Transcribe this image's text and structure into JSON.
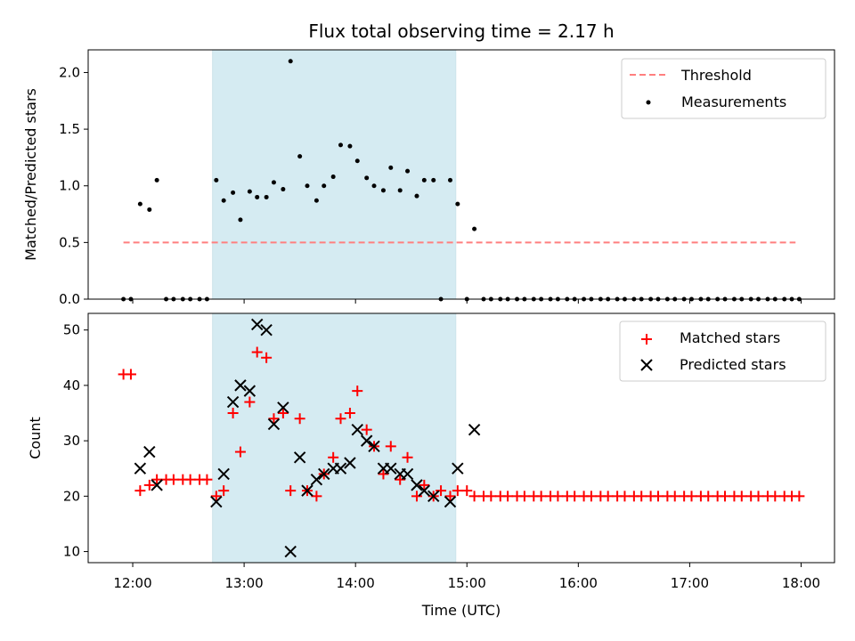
{
  "chart_data": {
    "title": "Flux total observing time = 2.17 h",
    "shaded_interval": {
      "start": "12:43",
      "end": "14:54",
      "color": "#add8e6"
    },
    "x_axis": {
      "label": "Time (UTC)",
      "range": [
        "11:36",
        "18:18"
      ],
      "ticks": [
        "12:00",
        "13:00",
        "14:00",
        "15:00",
        "16:00",
        "17:00",
        "18:00"
      ]
    },
    "panels": [
      {
        "type": "scatter",
        "ylabel": "Matched/Predicted stars",
        "ylim": [
          0,
          2.2
        ],
        "yticks": [
          "0.0",
          "0.5",
          "1.0",
          "1.5",
          "2.0"
        ],
        "legend": {
          "placement": "top-right",
          "entries": [
            "Threshold",
            "Measurements"
          ]
        },
        "series": [
          {
            "name": "Threshold",
            "style": "dashed-line",
            "color": "#ff7f7f",
            "points": [
              [
                "11:55",
                0.5
              ],
              [
                "17:57",
                0.5
              ]
            ]
          },
          {
            "name": "Measurements",
            "style": "dot",
            "color": "#000000",
            "points": [
              [
                "11:55",
                0.0
              ],
              [
                "11:59",
                0.0
              ],
              [
                "12:04",
                0.84
              ],
              [
                "12:09",
                0.79
              ],
              [
                "12:13",
                1.05
              ],
              [
                "12:18",
                0.0
              ],
              [
                "12:22",
                0.0
              ],
              [
                "12:27",
                0.0
              ],
              [
                "12:31",
                0.0
              ],
              [
                "12:36",
                0.0
              ],
              [
                "12:40",
                0.0
              ],
              [
                "12:45",
                1.05
              ],
              [
                "12:49",
                0.87
              ],
              [
                "12:54",
                0.94
              ],
              [
                "12:58",
                0.7
              ],
              [
                "13:03",
                0.95
              ],
              [
                "13:07",
                0.9
              ],
              [
                "13:12",
                0.9
              ],
              [
                "13:16",
                1.03
              ],
              [
                "13:21",
                0.97
              ],
              [
                "13:25",
                2.1
              ],
              [
                "13:30",
                1.26
              ],
              [
                "13:34",
                1.0
              ],
              [
                "13:39",
                0.87
              ],
              [
                "13:43",
                1.0
              ],
              [
                "13:48",
                1.08
              ],
              [
                "13:52",
                1.36
              ],
              [
                "13:57",
                1.35
              ],
              [
                "14:01",
                1.22
              ],
              [
                "14:06",
                1.07
              ],
              [
                "14:10",
                1.0
              ],
              [
                "14:15",
                0.96
              ],
              [
                "14:19",
                1.16
              ],
              [
                "14:24",
                0.96
              ],
              [
                "14:28",
                1.13
              ],
              [
                "14:33",
                0.91
              ],
              [
                "14:37",
                1.05
              ],
              [
                "14:42",
                1.05
              ],
              [
                "14:46",
                0.0
              ],
              [
                "14:51",
                1.05
              ],
              [
                "14:55",
                0.84
              ],
              [
                "15:00",
                0.0
              ],
              [
                "15:04",
                0.62
              ],
              [
                "15:09",
                0.0
              ],
              [
                "15:13",
                0.0
              ],
              [
                "15:18",
                0.0
              ],
              [
                "15:22",
                0.0
              ],
              [
                "15:27",
                0.0
              ],
              [
                "15:31",
                0.0
              ],
              [
                "15:36",
                0.0
              ],
              [
                "15:40",
                0.0
              ],
              [
                "15:45",
                0.0
              ],
              [
                "15:49",
                0.0
              ],
              [
                "15:54",
                0.0
              ],
              [
                "15:58",
                0.0
              ],
              [
                "16:03",
                0.0
              ],
              [
                "16:07",
                0.0
              ],
              [
                "16:12",
                0.0
              ],
              [
                "16:16",
                0.0
              ],
              [
                "16:21",
                0.0
              ],
              [
                "16:25",
                0.0
              ],
              [
                "16:30",
                0.0
              ],
              [
                "16:34",
                0.0
              ],
              [
                "16:39",
                0.0
              ],
              [
                "16:43",
                0.0
              ],
              [
                "16:48",
                0.0
              ],
              [
                "16:52",
                0.0
              ],
              [
                "16:57",
                0.0
              ],
              [
                "17:01",
                0.0
              ],
              [
                "17:06",
                0.0
              ],
              [
                "17:10",
                0.0
              ],
              [
                "17:15",
                0.0
              ],
              [
                "17:19",
                0.0
              ],
              [
                "17:24",
                0.0
              ],
              [
                "17:28",
                0.0
              ],
              [
                "17:33",
                0.0
              ],
              [
                "17:37",
                0.0
              ],
              [
                "17:42",
                0.0
              ],
              [
                "17:46",
                0.0
              ],
              [
                "17:51",
                0.0
              ],
              [
                "17:55",
                0.0
              ],
              [
                "17:59",
                0.0
              ]
            ]
          }
        ]
      },
      {
        "type": "scatter",
        "ylabel": "Count",
        "ylim": [
          8,
          53
        ],
        "yticks": [
          "10",
          "20",
          "30",
          "40",
          "50"
        ],
        "legend": {
          "placement": "top-right",
          "entries": [
            "Matched stars",
            "Predicted stars"
          ]
        },
        "series": [
          {
            "name": "Matched stars",
            "style": "plus",
            "color": "#ff0000",
            "points": [
              [
                "11:55",
                42
              ],
              [
                "11:59",
                42
              ],
              [
                "12:04",
                21
              ],
              [
                "12:09",
                22
              ],
              [
                "12:13",
                23
              ],
              [
                "12:18",
                23
              ],
              [
                "12:22",
                23
              ],
              [
                "12:27",
                23
              ],
              [
                "12:31",
                23
              ],
              [
                "12:36",
                23
              ],
              [
                "12:40",
                23
              ],
              [
                "12:45",
                20
              ],
              [
                "12:49",
                21
              ],
              [
                "12:54",
                35
              ],
              [
                "12:58",
                28
              ],
              [
                "13:03",
                37
              ],
              [
                "13:07",
                46
              ],
              [
                "13:12",
                45
              ],
              [
                "13:16",
                34
              ],
              [
                "13:21",
                35
              ],
              [
                "13:25",
                21
              ],
              [
                "13:30",
                34
              ],
              [
                "13:34",
                21
              ],
              [
                "13:39",
                20
              ],
              [
                "13:43",
                24
              ],
              [
                "13:48",
                27
              ],
              [
                "13:52",
                34
              ],
              [
                "13:57",
                35
              ],
              [
                "14:01",
                39
              ],
              [
                "14:06",
                32
              ],
              [
                "14:10",
                29
              ],
              [
                "14:15",
                24
              ],
              [
                "14:19",
                29
              ],
              [
                "14:24",
                23
              ],
              [
                "14:28",
                27
              ],
              [
                "14:33",
                20
              ],
              [
                "14:37",
                22
              ],
              [
                "14:42",
                20
              ],
              [
                "14:46",
                21
              ],
              [
                "14:51",
                20
              ],
              [
                "14:55",
                21
              ],
              [
                "15:00",
                21
              ],
              [
                "15:04",
                20
              ],
              [
                "15:09",
                20
              ],
              [
                "15:13",
                20
              ],
              [
                "15:18",
                20
              ],
              [
                "15:22",
                20
              ],
              [
                "15:27",
                20
              ],
              [
                "15:31",
                20
              ],
              [
                "15:36",
                20
              ],
              [
                "15:40",
                20
              ],
              [
                "15:45",
                20
              ],
              [
                "15:49",
                20
              ],
              [
                "15:54",
                20
              ],
              [
                "15:58",
                20
              ],
              [
                "16:03",
                20
              ],
              [
                "16:07",
                20
              ],
              [
                "16:12",
                20
              ],
              [
                "16:16",
                20
              ],
              [
                "16:21",
                20
              ],
              [
                "16:25",
                20
              ],
              [
                "16:30",
                20
              ],
              [
                "16:34",
                20
              ],
              [
                "16:39",
                20
              ],
              [
                "16:43",
                20
              ],
              [
                "16:48",
                20
              ],
              [
                "16:52",
                20
              ],
              [
                "16:57",
                20
              ],
              [
                "17:01",
                20
              ],
              [
                "17:06",
                20
              ],
              [
                "17:10",
                20
              ],
              [
                "17:15",
                20
              ],
              [
                "17:19",
                20
              ],
              [
                "17:24",
                20
              ],
              [
                "17:28",
                20
              ],
              [
                "17:33",
                20
              ],
              [
                "17:37",
                20
              ],
              [
                "17:42",
                20
              ],
              [
                "17:46",
                20
              ],
              [
                "17:51",
                20
              ],
              [
                "17:55",
                20
              ],
              [
                "17:59",
                20
              ]
            ]
          },
          {
            "name": "Predicted stars",
            "style": "x",
            "color": "#000000",
            "points": [
              [
                "12:04",
                25
              ],
              [
                "12:09",
                28
              ],
              [
                "12:13",
                22
              ],
              [
                "12:45",
                19
              ],
              [
                "12:49",
                24
              ],
              [
                "12:54",
                37
              ],
              [
                "12:58",
                40
              ],
              [
                "13:03",
                39
              ],
              [
                "13:07",
                51
              ],
              [
                "13:12",
                50
              ],
              [
                "13:16",
                33
              ],
              [
                "13:21",
                36
              ],
              [
                "13:25",
                10
              ],
              [
                "13:30",
                27
              ],
              [
                "13:34",
                21
              ],
              [
                "13:39",
                23
              ],
              [
                "13:43",
                24
              ],
              [
                "13:48",
                25
              ],
              [
                "13:52",
                25
              ],
              [
                "13:57",
                26
              ],
              [
                "14:01",
                32
              ],
              [
                "14:06",
                30
              ],
              [
                "14:10",
                29
              ],
              [
                "14:15",
                25
              ],
              [
                "14:19",
                25
              ],
              [
                "14:24",
                24
              ],
              [
                "14:28",
                24
              ],
              [
                "14:33",
                22
              ],
              [
                "14:37",
                21
              ],
              [
                "14:42",
                20
              ],
              [
                "14:51",
                19
              ],
              [
                "14:55",
                25
              ],
              [
                "15:04",
                32
              ]
            ]
          }
        ]
      }
    ]
  }
}
